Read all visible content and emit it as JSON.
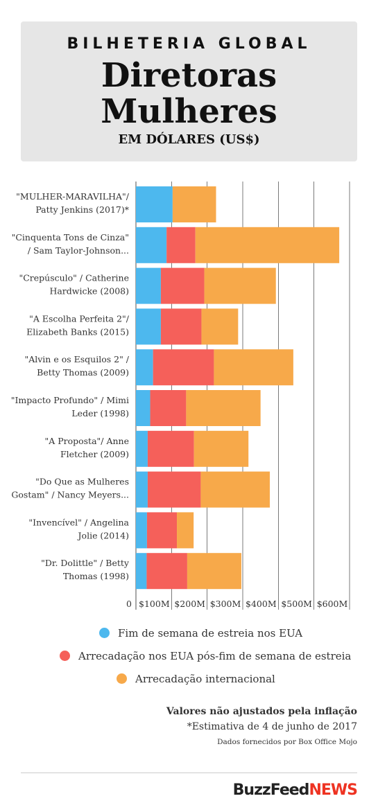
{
  "header": {
    "kicker": "BILHETERIA GLOBAL",
    "title": "Diretoras Mulheres",
    "subtitle": "EM DÓLARES (US$)"
  },
  "colors": {
    "opening": "#4db8ee",
    "domestic": "#f5605a",
    "international": "#f7a94a",
    "grid": "#222222",
    "header_bg": "#e6e6e6"
  },
  "chart_data": {
    "type": "bar",
    "orientation": "horizontal",
    "stacked": true,
    "categories": [
      [
        "\"MULHER-MARAVILHA\"/",
        "Patty Jenkins (2017)*"
      ],
      [
        "\"Cinquenta Tons de Cinza\"",
        "/ Sam Taylor-Johnson..."
      ],
      [
        "\"Crepúsculo\" / Catherine",
        "Hardwicke (2008)"
      ],
      [
        "\"A Escolha Perfeita 2\"/",
        "Elizabeth Banks (2015)"
      ],
      [
        "\"Alvin e os Esquilos 2\" /",
        "Betty Thomas (2009)"
      ],
      [
        "\"Impacto Profundo\" / Mimi",
        "Leder (1998)"
      ],
      [
        "\"A Proposta\"/ Anne",
        "Fletcher (2009)"
      ],
      [
        "\"Do Que as Mulheres",
        "Gostam\" / Nancy Meyers..."
      ],
      [
        "\"Invencível\" / Angelina",
        "Jolie (2014)"
      ],
      [
        "\"Dr. Dolittle\" / Betty",
        "Thomas (1998)"
      ]
    ],
    "series": [
      {
        "name": "Fim de semana de estreia nos EUA",
        "values": [
          103,
          86,
          70,
          70,
          48,
          40,
          33,
          33,
          31,
          30
        ]
      },
      {
        "name": "Arrecadação nos EUA pós-fim de semana de estreia",
        "values": [
          0,
          81,
          122,
          114,
          171,
          101,
          130,
          149,
          84,
          114
        ]
      },
      {
        "name": "Arrecadação internacional",
        "values": [
          122,
          404,
          201,
          103,
          223,
          209,
          153,
          194,
          47,
          152
        ]
      }
    ],
    "xticks": [
      "0",
      "$100M",
      "$200M",
      "$300M",
      "$400M",
      "$500M",
      "$600M"
    ],
    "xlim": [
      0,
      600
    ]
  },
  "legend": [
    "Fim de semana de estreia nos EUA",
    "Arrecadação nos EUA pós-fim de semana de estreia",
    "Arrecadação internacional"
  ],
  "notes": {
    "line1": "Valores não ajustados pela inflação",
    "line2": "*Estimativa de 4 de junho de 2017",
    "line3": "Dados fornecidos por Box Office Mojo"
  },
  "logo": {
    "part1": "BuzzFeed",
    "part2": "NEWS"
  }
}
